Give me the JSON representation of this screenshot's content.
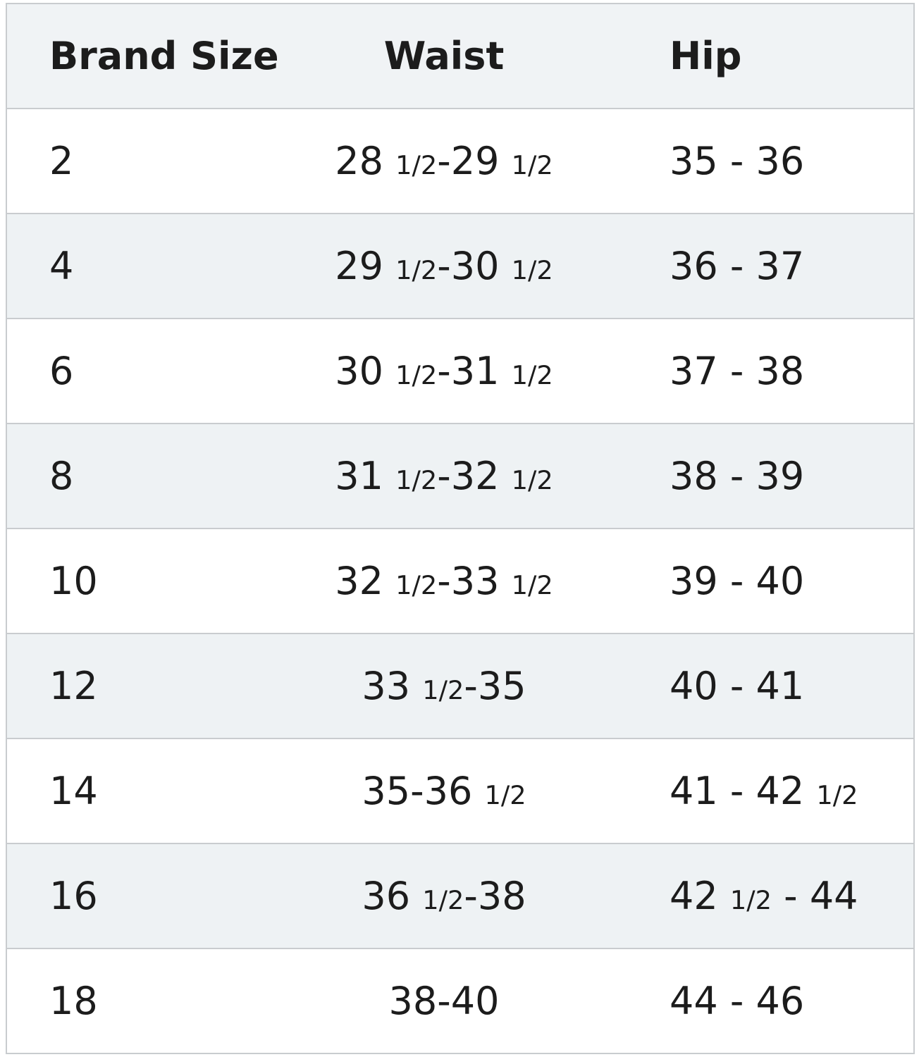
{
  "table": {
    "header": [
      "Brand Size",
      "Waist",
      "Hip"
    ],
    "rows": [
      [
        "2",
        "28 1/2-29 1/2",
        "35 - 36"
      ],
      [
        "4",
        "29 1/2-30 1/2",
        "36 - 37"
      ],
      [
        "6",
        "30 1/2-31 1/2",
        "37 - 38"
      ],
      [
        "8",
        "31 1/2-32 1/2",
        "38 - 39"
      ],
      [
        "10",
        "32 1/2-33 1/2",
        "39 - 40"
      ],
      [
        "12",
        "33 1/2-35",
        "40 - 41"
      ],
      [
        "14",
        "35-36 1/2",
        "41 - 42 1/2"
      ],
      [
        "16",
        "36 1/2-38",
        "42 1/2 - 44"
      ],
      [
        "18",
        "38-40",
        "44 - 46"
      ]
    ]
  }
}
